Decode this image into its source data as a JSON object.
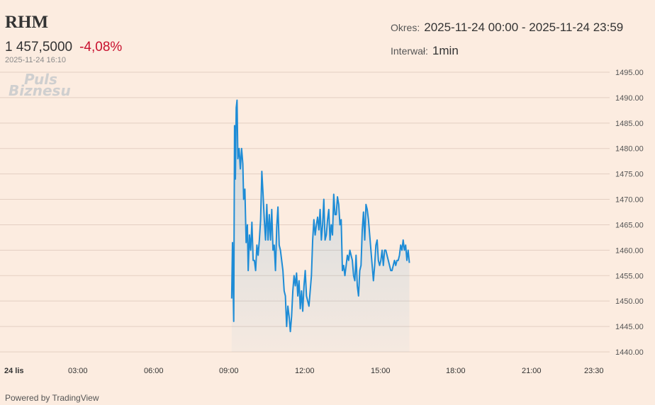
{
  "header": {
    "ticker": "RHM",
    "price": "1 457,5000",
    "change": "-4,08%",
    "timestamp": "2025-11-24 16:10",
    "period_label": "Okres:",
    "period_value": "2025-11-24 00:00 - 2025-11-24 23:59",
    "interval_label": "Interwał:",
    "interval_value": "1min"
  },
  "watermark": {
    "line1": "Puls",
    "line2": "Biznesu"
  },
  "footer": {
    "powered_by": "Powered by TradingView"
  },
  "colors": {
    "background": "#fcece0",
    "line": "#1e8cd6",
    "change_negative": "#c8102e",
    "grid": "#e3cfc2"
  },
  "chart_data": {
    "type": "area",
    "ylim": [
      1440,
      1495
    ],
    "y_ticks": [
      "1495.00",
      "1490.00",
      "1485.00",
      "1480.00",
      "1475.00",
      "1470.00",
      "1465.00",
      "1460.00",
      "1455.00",
      "1450.00",
      "1445.00",
      "1440.00"
    ],
    "x_ticks": [
      "24 lis",
      "03:00",
      "06:00",
      "09:00",
      "12:00",
      "15:00",
      "18:00",
      "21:00",
      "23:30"
    ],
    "grid": true,
    "series": [
      {
        "x": [
          "09:00",
          "09:02",
          "09:05",
          "09:07",
          "09:09",
          "09:11",
          "09:13",
          "09:15",
          "09:18",
          "09:21",
          "09:24",
          "09:27",
          "09:29",
          "09:32",
          "09:35",
          "09:38",
          "09:40",
          "09:43",
          "09:46",
          "09:49",
          "09:52",
          "09:55",
          "09:58",
          "10:01",
          "10:04",
          "10:07",
          "10:10",
          "10:13",
          "10:16",
          "10:19",
          "10:22",
          "10:25",
          "10:28",
          "10:31",
          "10:34",
          "10:37",
          "10:40",
          "10:43",
          "10:46",
          "10:49",
          "10:52",
          "10:55",
          "10:58",
          "11:01",
          "11:04",
          "11:07",
          "11:10",
          "11:13",
          "11:16",
          "11:19",
          "11:22",
          "11:25",
          "11:28",
          "11:31",
          "11:34",
          "11:37",
          "11:40",
          "11:43",
          "11:46",
          "11:49",
          "11:52",
          "11:55",
          "11:58",
          "12:01",
          "12:04",
          "12:07",
          "12:10",
          "12:13",
          "12:16",
          "12:19",
          "12:22",
          "12:25",
          "12:28",
          "12:31",
          "12:34",
          "12:37",
          "12:40",
          "12:43",
          "12:46",
          "12:49",
          "12:52",
          "12:55",
          "12:58",
          "13:01",
          "13:04",
          "13:07",
          "13:10",
          "13:13",
          "13:16",
          "13:19",
          "13:22",
          "13:25",
          "13:28",
          "13:31",
          "13:34",
          "13:37",
          "13:40",
          "13:43",
          "13:46",
          "13:49",
          "13:52",
          "13:55",
          "13:58",
          "14:01",
          "14:04",
          "14:07",
          "14:10",
          "14:13",
          "14:16",
          "14:19",
          "14:22",
          "14:25",
          "14:28",
          "14:31",
          "14:34",
          "14:37",
          "14:40",
          "14:43",
          "14:46",
          "14:49",
          "14:52",
          "14:55",
          "14:58",
          "15:01",
          "15:04",
          "15:07",
          "15:10",
          "15:13",
          "15:16",
          "15:19",
          "15:22",
          "15:25",
          "15:28",
          "15:31",
          "15:34",
          "15:37",
          "15:40",
          "15:43",
          "15:46",
          "15:49",
          "15:52",
          "15:55",
          "15:58",
          "16:01",
          "16:04",
          "16:07",
          "16:10"
        ],
        "values": [
          1450.5,
          1461.5,
          1446.0,
          1484.5,
          1474.0,
          1488.0,
          1489.5,
          1478.0,
          1480.0,
          1476.0,
          1480.0,
          1477.0,
          1470.0,
          1472.0,
          1461.5,
          1465.0,
          1456.0,
          1463.0,
          1460.0,
          1465.5,
          1458.0,
          1458.0,
          1456.0,
          1461.0,
          1459.0,
          1462.0,
          1466.0,
          1475.5,
          1471.0,
          1466.0,
          1462.0,
          1469.0,
          1462.0,
          1467.0,
          1462.0,
          1468.0,
          1460.0,
          1461.0,
          1456.0,
          1464.5,
          1468.5,
          1461.0,
          1460.0,
          1458.0,
          1456.0,
          1452.0,
          1451.0,
          1445.0,
          1449.0,
          1447.0,
          1444.0,
          1447.0,
          1452.0,
          1455.0,
          1453.0,
          1455.5,
          1451.0,
          1454.0,
          1448.5,
          1452.0,
          1448.0,
          1453.0,
          1456.0,
          1451.0,
          1450.0,
          1449.0,
          1452.0,
          1455.0,
          1462.0,
          1466.0,
          1463.0,
          1465.0,
          1466.5,
          1464.0,
          1468.0,
          1462.0,
          1465.0,
          1470.0,
          1462.0,
          1463.0,
          1466.0,
          1468.0,
          1462.0,
          1465.0,
          1463.0,
          1471.0,
          1467.0,
          1467.0,
          1470.5,
          1469.0,
          1465.0,
          1466.0,
          1456.0,
          1457.0,
          1455.0,
          1457.0,
          1459.0,
          1458.0,
          1460.0,
          1459.0,
          1458.0,
          1455.0,
          1454.0,
          1459.0,
          1453.0,
          1451.0,
          1456.0,
          1457.0,
          1464.0,
          1467.5,
          1462.0,
          1469.0,
          1468.0,
          1466.0,
          1463.0,
          1460.0,
          1457.0,
          1454.0,
          1457.0,
          1461.0,
          1462.0,
          1458.0,
          1457.0,
          1458.0,
          1460.0,
          1457.0,
          1460.0,
          1460.0,
          1459.0,
          1458.0,
          1457.0,
          1456.0,
          1456.0,
          1457.0,
          1458.0,
          1457.0,
          1458.0,
          1458.0,
          1459.0,
          1461.0,
          1460.0,
          1462.0,
          1460.0,
          1461.0,
          1458.0,
          1460.0,
          1457.5
        ]
      }
    ]
  }
}
